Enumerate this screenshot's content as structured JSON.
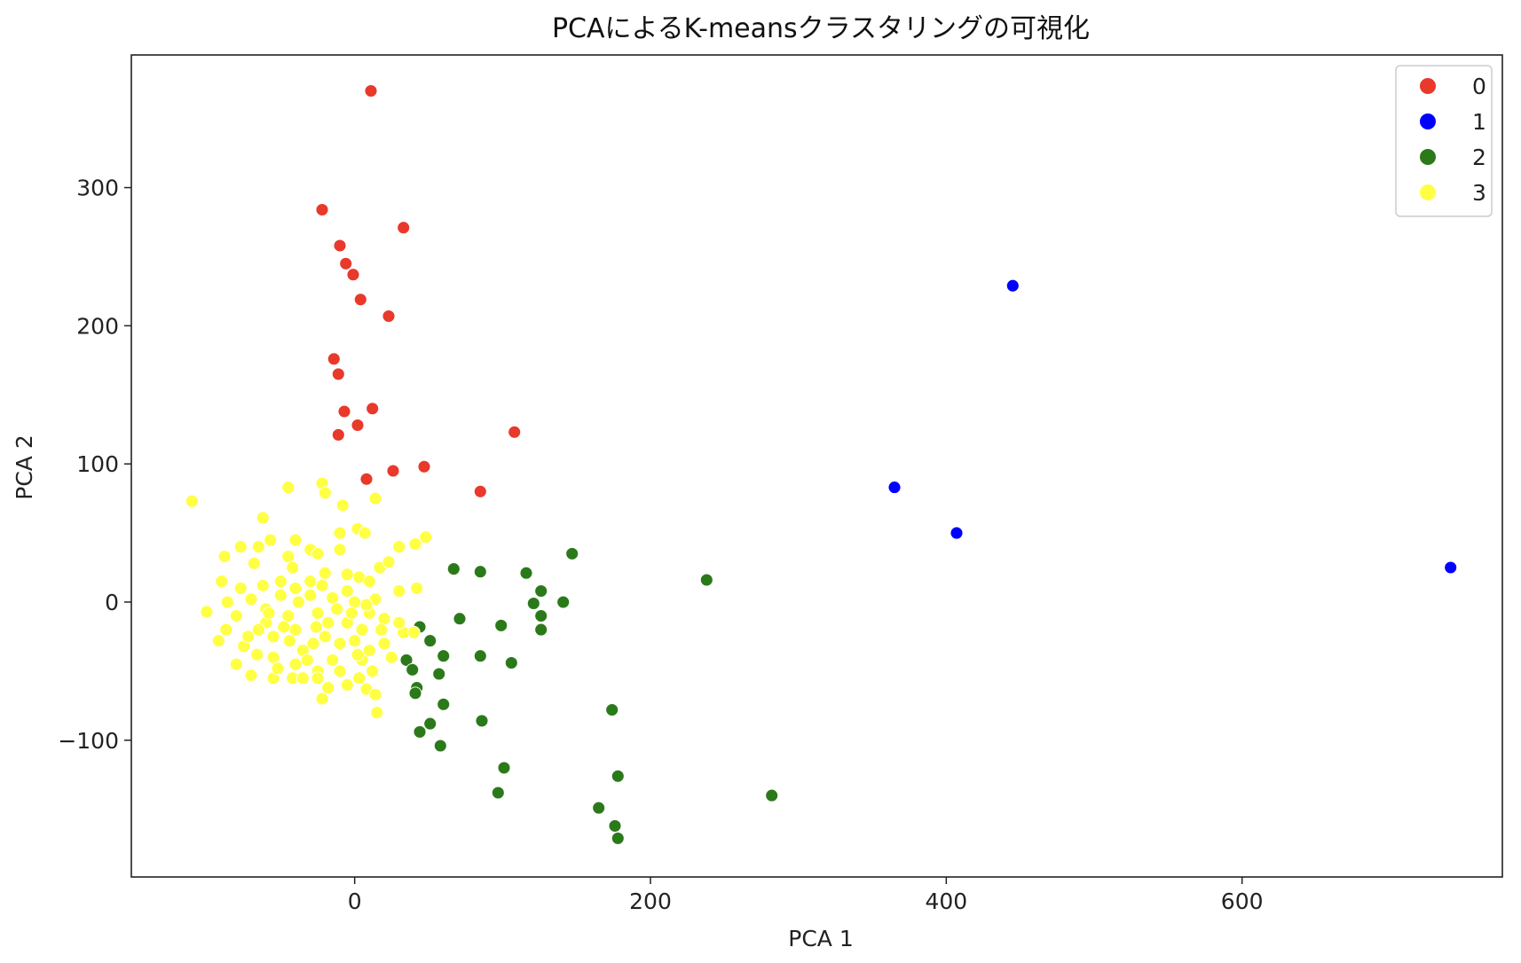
{
  "chart_data": {
    "type": "scatter",
    "title": "PCAによるK-meansクラスタリングの可視化",
    "xlabel": "PCA 1",
    "ylabel": "PCA 2",
    "xlim": [
      -151,
      776
    ],
    "ylim": [
      -199,
      396
    ],
    "xticks": [
      0,
      200,
      400,
      600
    ],
    "yticks": [
      -100,
      0,
      100,
      200,
      300
    ],
    "ytick_labels": [
      "−100",
      "0",
      "100",
      "200",
      "300"
    ],
    "legend_position": "top-right",
    "series": [
      {
        "name": "0",
        "color": "#e8392a",
        "points": [
          [
            11,
            370
          ],
          [
            -22,
            284
          ],
          [
            33,
            271
          ],
          [
            -10,
            258
          ],
          [
            -6,
            245
          ],
          [
            -1,
            237
          ],
          [
            4,
            219
          ],
          [
            23,
            207
          ],
          [
            -14,
            176
          ],
          [
            -11,
            165
          ],
          [
            -7,
            138
          ],
          [
            12,
            140
          ],
          [
            -11,
            121
          ],
          [
            2,
            128
          ],
          [
            108,
            123
          ],
          [
            8,
            89
          ],
          [
            26,
            95
          ],
          [
            47,
            98
          ],
          [
            85,
            80
          ]
        ]
      },
      {
        "name": "1",
        "color": "#0000ff",
        "points": [
          [
            445,
            229
          ],
          [
            365,
            83
          ],
          [
            407,
            50
          ],
          [
            741,
            25
          ]
        ]
      },
      {
        "name": "2",
        "color": "#2b7a1a",
        "points": [
          [
            67,
            24
          ],
          [
            85,
            22
          ],
          [
            116,
            21
          ],
          [
            147,
            35
          ],
          [
            238,
            16
          ],
          [
            126,
            8
          ],
          [
            121,
            -1
          ],
          [
            141,
            0
          ],
          [
            126,
            -10
          ],
          [
            71,
            -12
          ],
          [
            99,
            -17
          ],
          [
            126,
            -20
          ],
          [
            44,
            -18
          ],
          [
            51,
            -28
          ],
          [
            60,
            -39
          ],
          [
            85,
            -39
          ],
          [
            106,
            -44
          ],
          [
            35,
            -42
          ],
          [
            39,
            -49
          ],
          [
            57,
            -52
          ],
          [
            42,
            -62
          ],
          [
            41,
            -66
          ],
          [
            60,
            -74
          ],
          [
            44,
            -94
          ],
          [
            51,
            -88
          ],
          [
            58,
            -104
          ],
          [
            86,
            -86
          ],
          [
            174,
            -78
          ],
          [
            101,
            -120
          ],
          [
            97,
            -138
          ],
          [
            178,
            -126
          ],
          [
            282,
            -140
          ],
          [
            165,
            -149
          ],
          [
            176,
            -162
          ],
          [
            178,
            -171
          ]
        ]
      },
      {
        "name": "3",
        "color": "#ffff44",
        "points": [
          [
            -110,
            73
          ],
          [
            -45,
            83
          ],
          [
            -22,
            86
          ],
          [
            -20,
            79
          ],
          [
            -8,
            70
          ],
          [
            14,
            75
          ],
          [
            -62,
            61
          ],
          [
            -40,
            45
          ],
          [
            -57,
            45
          ],
          [
            -77,
            40
          ],
          [
            -65,
            40
          ],
          [
            -10,
            50
          ],
          [
            2,
            53
          ],
          [
            7,
            50
          ],
          [
            30,
            40
          ],
          [
            41,
            42
          ],
          [
            48,
            47
          ],
          [
            -30,
            38
          ],
          [
            -10,
            38
          ],
          [
            -25,
            35
          ],
          [
            -45,
            33
          ],
          [
            -88,
            33
          ],
          [
            -68,
            28
          ],
          [
            -42,
            25
          ],
          [
            -20,
            21
          ],
          [
            -5,
            20
          ],
          [
            3,
            18
          ],
          [
            10,
            15
          ],
          [
            17,
            25
          ],
          [
            23,
            29
          ],
          [
            -90,
            15
          ],
          [
            -77,
            10
          ],
          [
            -62,
            12
          ],
          [
            -30,
            15
          ],
          [
            -50,
            5
          ],
          [
            -70,
            2
          ],
          [
            -30,
            5
          ],
          [
            -15,
            3
          ],
          [
            0,
            0
          ],
          [
            14,
            2
          ],
          [
            30,
            8
          ],
          [
            42,
            10
          ],
          [
            -100,
            -7
          ],
          [
            -80,
            -10
          ],
          [
            -60,
            -15
          ],
          [
            -40,
            -20
          ],
          [
            -20,
            -25
          ],
          [
            -5,
            -15
          ],
          [
            10,
            -8
          ],
          [
            20,
            -12
          ],
          [
            33,
            -22
          ],
          [
            40,
            -22
          ],
          [
            -92,
            -28
          ],
          [
            -75,
            -32
          ],
          [
            -55,
            -40
          ],
          [
            -40,
            -45
          ],
          [
            -25,
            -50
          ],
          [
            -10,
            -50
          ],
          [
            5,
            -42
          ],
          [
            10,
            -35
          ],
          [
            -70,
            -53
          ],
          [
            -55,
            -55
          ],
          [
            -42,
            -55
          ],
          [
            -25,
            -55
          ],
          [
            -18,
            -62
          ],
          [
            -5,
            -60
          ],
          [
            8,
            -63
          ],
          [
            14,
            -67
          ],
          [
            -22,
            -70
          ],
          [
            15,
            -80
          ],
          [
            -87,
            -20
          ],
          [
            -86,
            0
          ],
          [
            -55,
            -25
          ],
          [
            -35,
            -35
          ],
          [
            -45,
            -10
          ],
          [
            -25,
            -8
          ],
          [
            -10,
            -30
          ],
          [
            0,
            -28
          ],
          [
            5,
            -20
          ],
          [
            -60,
            -5
          ],
          [
            -80,
            -45
          ],
          [
            -35,
            -55
          ],
          [
            -15,
            -42
          ],
          [
            3,
            -55
          ],
          [
            -65,
            -20
          ],
          [
            -48,
            -18
          ],
          [
            20,
            -30
          ],
          [
            25,
            -40
          ],
          [
            -50,
            15
          ],
          [
            -38,
            0
          ],
          [
            -22,
            12
          ],
          [
            -5,
            8
          ],
          [
            8,
            -2
          ],
          [
            -12,
            -5
          ],
          [
            -28,
            -30
          ],
          [
            -52,
            -48
          ],
          [
            12,
            -50
          ],
          [
            -72,
            -25
          ],
          [
            30,
            -15
          ],
          [
            -40,
            10
          ],
          [
            -18,
            -15
          ],
          [
            2,
            -38
          ],
          [
            -32,
            -42
          ],
          [
            18,
            -20
          ],
          [
            -58,
            -8
          ],
          [
            -44,
            -28
          ],
          [
            -2,
            -8
          ],
          [
            -26,
            -18
          ],
          [
            -66,
            -38
          ]
        ]
      }
    ]
  }
}
